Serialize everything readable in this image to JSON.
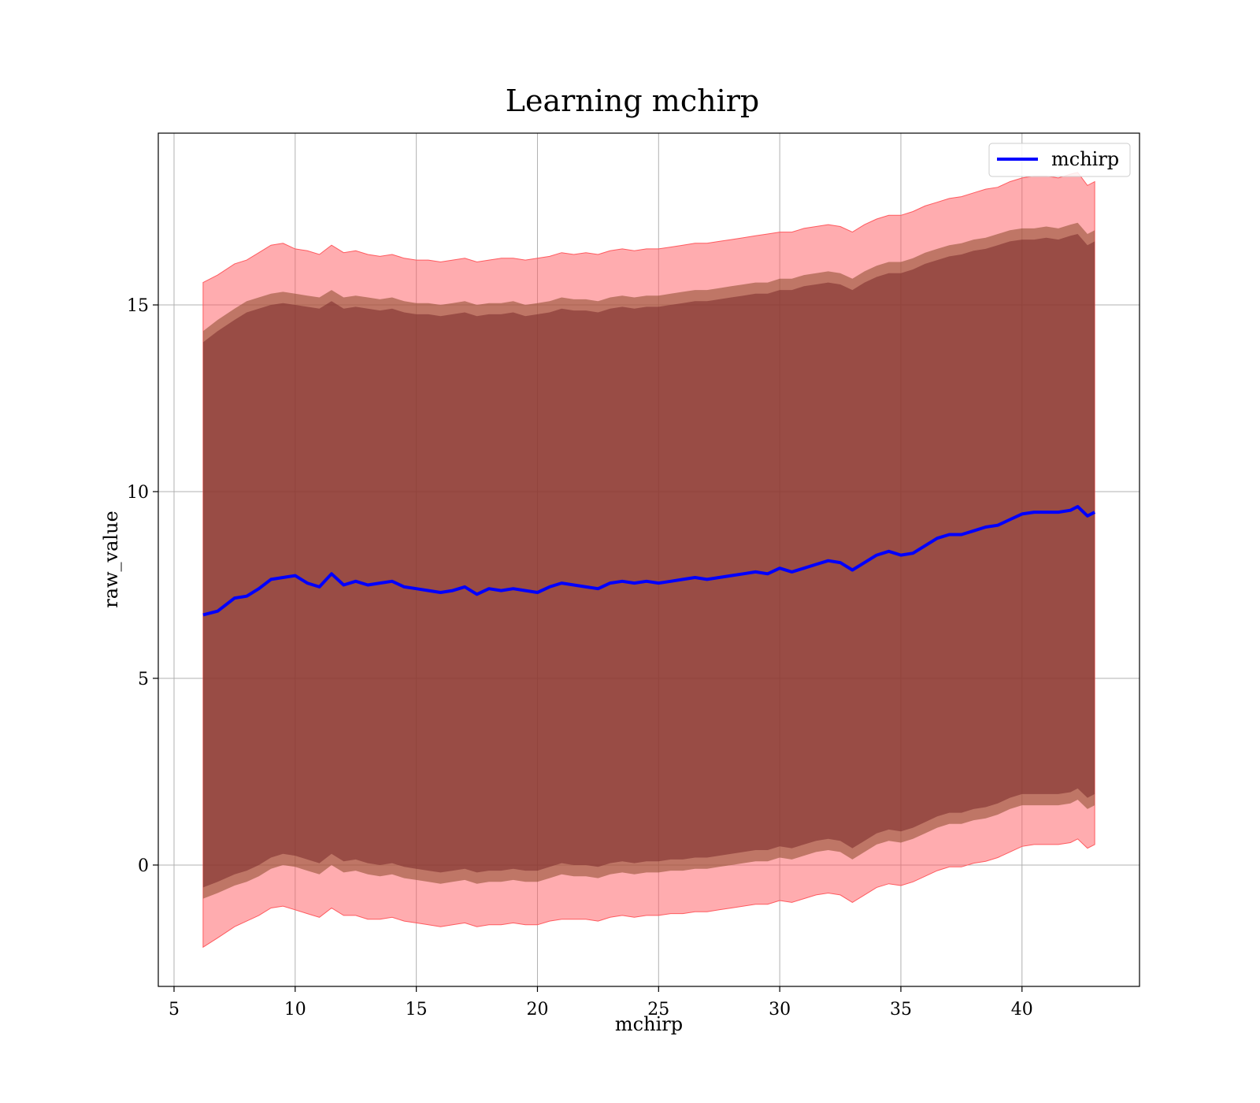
{
  "chart_data": {
    "type": "line",
    "title": "Learning mchirp",
    "xlabel": "mchirp",
    "ylabel": "raw_value",
    "xlim": [
      4.35,
      44.85
    ],
    "ylim": [
      -3.25,
      19.6
    ],
    "xticks": [
      5,
      10,
      15,
      20,
      25,
      30,
      35,
      40
    ],
    "yticks": [
      0,
      5,
      10,
      15
    ],
    "grid": true,
    "legend": {
      "position": "top-right",
      "entries": [
        "mchirp"
      ]
    },
    "colors": {
      "line": "#0000ff",
      "outer_band": "#ff5a5f",
      "inner_band": "#7a2a2a",
      "inner_edge": "#8b4a2a"
    },
    "series": [
      {
        "name": "mchirp",
        "x": [
          6.2,
          6.8,
          7.5,
          8.0,
          8.5,
          9.0,
          9.5,
          10.0,
          10.5,
          11.0,
          11.5,
          12.0,
          12.5,
          13.0,
          13.5,
          14.0,
          14.5,
          15.0,
          15.5,
          16.0,
          16.5,
          17.0,
          17.5,
          18.0,
          18.5,
          19.0,
          19.5,
          20.0,
          20.5,
          21.0,
          21.5,
          22.0,
          22.5,
          23.0,
          23.5,
          24.0,
          24.5,
          25.0,
          25.5,
          26.0,
          26.5,
          27.0,
          27.5,
          28.0,
          28.5,
          29.0,
          29.5,
          30.0,
          30.5,
          31.0,
          31.5,
          32.0,
          32.5,
          33.0,
          33.5,
          34.0,
          34.5,
          35.0,
          35.5,
          36.0,
          36.5,
          37.0,
          37.5,
          38.0,
          38.5,
          39.0,
          39.5,
          40.0,
          40.5,
          41.0,
          41.5,
          42.0,
          42.3,
          42.7,
          43.0
        ],
        "y": [
          6.7,
          6.8,
          7.15,
          7.2,
          7.4,
          7.65,
          7.7,
          7.75,
          7.55,
          7.45,
          7.8,
          7.5,
          7.6,
          7.5,
          7.55,
          7.6,
          7.45,
          7.4,
          7.35,
          7.3,
          7.35,
          7.45,
          7.25,
          7.4,
          7.35,
          7.4,
          7.35,
          7.3,
          7.45,
          7.55,
          7.5,
          7.45,
          7.4,
          7.55,
          7.6,
          7.55,
          7.6,
          7.55,
          7.6,
          7.65,
          7.7,
          7.65,
          7.7,
          7.75,
          7.8,
          7.85,
          7.8,
          7.95,
          7.85,
          7.95,
          8.05,
          8.15,
          8.1,
          7.9,
          8.1,
          8.3,
          8.4,
          8.3,
          8.35,
          8.55,
          8.75,
          8.85,
          8.85,
          8.95,
          9.05,
          9.1,
          9.25,
          9.4,
          9.45,
          9.45,
          9.45,
          9.5,
          9.6,
          9.35,
          9.45
        ],
        "inner_upper": [
          14.0,
          14.3,
          14.6,
          14.8,
          14.9,
          15.0,
          15.05,
          15.0,
          14.95,
          14.9,
          15.1,
          14.9,
          14.95,
          14.9,
          14.85,
          14.9,
          14.8,
          14.75,
          14.75,
          14.7,
          14.75,
          14.8,
          14.7,
          14.75,
          14.75,
          14.8,
          14.7,
          14.75,
          14.8,
          14.9,
          14.85,
          14.85,
          14.8,
          14.9,
          14.95,
          14.9,
          14.95,
          14.95,
          15.0,
          15.05,
          15.1,
          15.1,
          15.15,
          15.2,
          15.25,
          15.3,
          15.3,
          15.4,
          15.4,
          15.5,
          15.55,
          15.6,
          15.55,
          15.4,
          15.6,
          15.75,
          15.85,
          15.85,
          15.95,
          16.1,
          16.2,
          16.3,
          16.35,
          16.45,
          16.5,
          16.6,
          16.7,
          16.75,
          16.75,
          16.8,
          16.75,
          16.85,
          16.9,
          16.6,
          16.7
        ],
        "inner_lower": [
          -0.6,
          -0.45,
          -0.25,
          -0.15,
          0.0,
          0.2,
          0.3,
          0.25,
          0.15,
          0.05,
          0.3,
          0.1,
          0.15,
          0.05,
          0.0,
          0.05,
          -0.05,
          -0.1,
          -0.15,
          -0.2,
          -0.15,
          -0.1,
          -0.2,
          -0.15,
          -0.15,
          -0.1,
          -0.15,
          -0.15,
          -0.05,
          0.05,
          0.0,
          0.0,
          -0.05,
          0.05,
          0.1,
          0.05,
          0.1,
          0.1,
          0.15,
          0.15,
          0.2,
          0.2,
          0.25,
          0.3,
          0.35,
          0.4,
          0.4,
          0.5,
          0.45,
          0.55,
          0.65,
          0.7,
          0.65,
          0.45,
          0.65,
          0.85,
          0.95,
          0.9,
          1.0,
          1.15,
          1.3,
          1.4,
          1.4,
          1.5,
          1.55,
          1.65,
          1.8,
          1.9,
          1.9,
          1.9,
          1.9,
          1.95,
          2.05,
          1.8,
          1.9
        ],
        "outer_upper": [
          15.6,
          15.8,
          16.1,
          16.2,
          16.4,
          16.6,
          16.65,
          16.5,
          16.45,
          16.35,
          16.6,
          16.4,
          16.45,
          16.35,
          16.3,
          16.35,
          16.25,
          16.2,
          16.2,
          16.15,
          16.2,
          16.25,
          16.15,
          16.2,
          16.25,
          16.25,
          16.2,
          16.25,
          16.3,
          16.4,
          16.35,
          16.4,
          16.35,
          16.45,
          16.5,
          16.45,
          16.5,
          16.5,
          16.55,
          16.6,
          16.65,
          16.65,
          16.7,
          16.75,
          16.8,
          16.85,
          16.9,
          16.95,
          16.95,
          17.05,
          17.1,
          17.15,
          17.1,
          16.95,
          17.15,
          17.3,
          17.4,
          17.4,
          17.5,
          17.65,
          17.75,
          17.85,
          17.9,
          18.0,
          18.1,
          18.15,
          18.3,
          18.4,
          18.45,
          18.45,
          18.4,
          18.5,
          18.55,
          18.2,
          18.3
        ],
        "outer_lower": [
          -2.2,
          -1.95,
          -1.65,
          -1.5,
          -1.35,
          -1.15,
          -1.1,
          -1.2,
          -1.3,
          -1.4,
          -1.15,
          -1.35,
          -1.35,
          -1.45,
          -1.45,
          -1.4,
          -1.5,
          -1.55,
          -1.6,
          -1.65,
          -1.6,
          -1.55,
          -1.65,
          -1.6,
          -1.6,
          -1.55,
          -1.6,
          -1.6,
          -1.5,
          -1.45,
          -1.45,
          -1.45,
          -1.5,
          -1.4,
          -1.35,
          -1.4,
          -1.35,
          -1.35,
          -1.3,
          -1.3,
          -1.25,
          -1.25,
          -1.2,
          -1.15,
          -1.1,
          -1.05,
          -1.05,
          -0.95,
          -1.0,
          -0.9,
          -0.8,
          -0.75,
          -0.8,
          -1.0,
          -0.8,
          -0.6,
          -0.5,
          -0.55,
          -0.45,
          -0.3,
          -0.15,
          -0.05,
          -0.05,
          0.05,
          0.1,
          0.2,
          0.35,
          0.5,
          0.55,
          0.55,
          0.55,
          0.6,
          0.7,
          0.45,
          0.55
        ]
      }
    ]
  }
}
